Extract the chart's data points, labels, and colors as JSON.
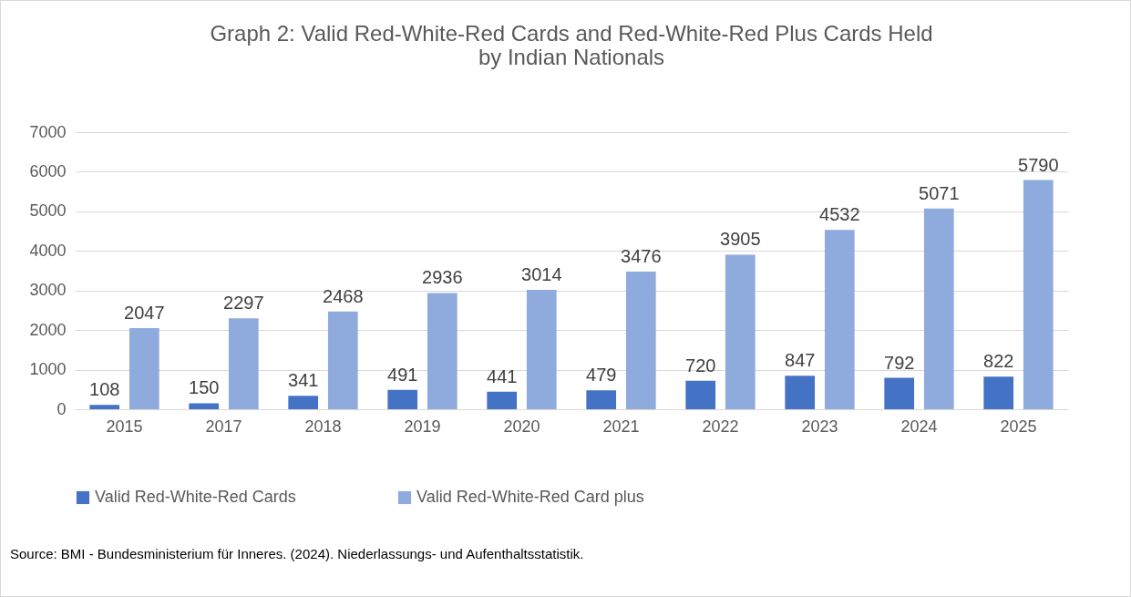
{
  "chart_data": {
    "type": "bar",
    "title": "Graph 2: Valid Red-White-Red Cards and Red-White-Red  Plus Cards Held by Indian Nationals",
    "categories": [
      "2015",
      "2017",
      "2018",
      "2019",
      "2020",
      "2021",
      "2022",
      "2023",
      "2024",
      "2025"
    ],
    "series": [
      {
        "name": "Valid Red-White-Red Cards",
        "color": "#4472c4",
        "values": [
          108,
          150,
          341,
          491,
          441,
          479,
          720,
          847,
          792,
          822
        ]
      },
      {
        "name": "Valid Red-White-Red Card plus",
        "color": "#8faadc",
        "values": [
          2047,
          2297,
          2468,
          2936,
          3014,
          3476,
          3905,
          4532,
          5071,
          5790
        ]
      }
    ],
    "ylim": [
      0,
      7000
    ],
    "yticks": [
      0,
      1000,
      2000,
      3000,
      4000,
      5000,
      6000,
      7000
    ],
    "grid": "y",
    "legend": "bottom",
    "data_labels": true,
    "annotations": [
      "Source: BMI - Bundesministerium für Inneres. (2024). Niederlassungs- und Aufenthaltsstatistik."
    ]
  }
}
